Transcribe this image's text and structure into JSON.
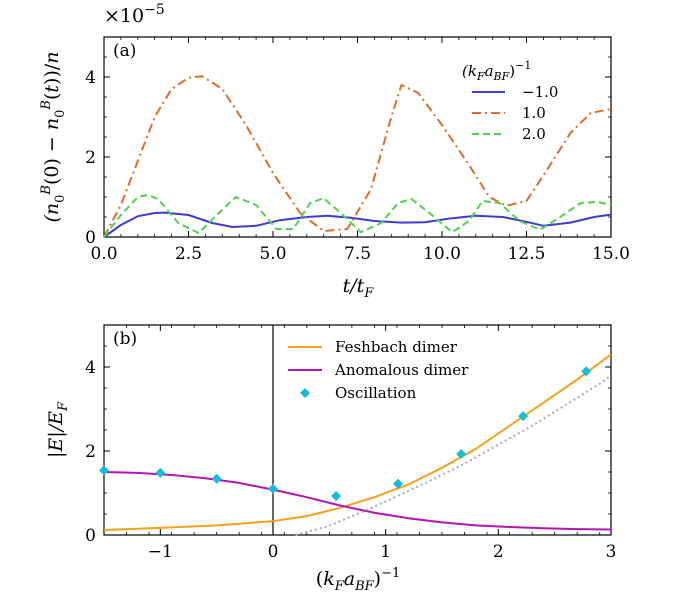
{
  "chart_data": [
    {
      "type": "line",
      "panel_label": "(a)",
      "xlabel": "t/t_F",
      "ylabel": "(n_0^B(0) − n_0^B(t))/n",
      "exponent_label": "×10",
      "exponent_power": "−5",
      "xlim": [
        0,
        15
      ],
      "ylim": [
        0,
        5
      ],
      "xticks": [
        0.0,
        2.5,
        5.0,
        7.5,
        10.0,
        12.5,
        15.0
      ],
      "xtick_labels": [
        "0.0",
        "2.5",
        "5.0",
        "7.5",
        "10.0",
        "12.5",
        "15.0"
      ],
      "yticks": [
        0,
        2,
        4
      ],
      "ytick_labels": [
        "0",
        "2",
        "4"
      ],
      "legend_title": "(k_F a_BF)^{-1}",
      "legend_position": "right",
      "grid": false,
      "series": [
        {
          "name": "−1.0",
          "color": "#3c3cd2",
          "dash": "solid",
          "x": [
            0,
            0.5,
            1.0,
            1.5,
            1.8,
            2.5,
            3.2,
            3.8,
            4.5,
            5.2,
            6.0,
            6.6,
            7.3,
            8.0,
            8.8,
            9.5,
            10.2,
            11.0,
            11.8,
            12.5,
            13.0,
            13.8,
            14.5,
            15.0
          ],
          "y": [
            0,
            0.3,
            0.52,
            0.6,
            0.61,
            0.55,
            0.35,
            0.25,
            0.28,
            0.42,
            0.5,
            0.53,
            0.48,
            0.4,
            0.36,
            0.37,
            0.46,
            0.53,
            0.5,
            0.38,
            0.28,
            0.36,
            0.5,
            0.56
          ]
        },
        {
          "name": "1.0",
          "color": "#e06a2b",
          "dash": "dashdot",
          "x": [
            0,
            0.5,
            1.0,
            1.5,
            2.0,
            2.5,
            2.9,
            3.5,
            4.2,
            5.0,
            5.8,
            6.5,
            7.2,
            7.9,
            8.5,
            8.8,
            9.3,
            10.0,
            10.8,
            11.4,
            11.9,
            12.5,
            13.2,
            13.8,
            14.4,
            15.0
          ],
          "y": [
            0,
            0.8,
            1.9,
            3.0,
            3.7,
            3.98,
            4.02,
            3.7,
            2.8,
            1.6,
            0.6,
            0.15,
            0.2,
            1.2,
            3.0,
            3.8,
            3.6,
            2.8,
            1.8,
            1.0,
            0.78,
            0.9,
            1.8,
            2.6,
            3.1,
            3.2
          ]
        },
        {
          "name": "2.0",
          "color": "#50d250",
          "dash": "dashed",
          "x": [
            0,
            0.5,
            1.0,
            1.3,
            1.6,
            2.2,
            2.8,
            3.4,
            3.9,
            4.5,
            5.1,
            5.6,
            6.1,
            6.5,
            7.0,
            7.6,
            8.2,
            8.7,
            9.1,
            9.7,
            10.3,
            10.8,
            11.2,
            11.7,
            12.3,
            12.9,
            13.5,
            14.1,
            14.6,
            15.0
          ],
          "y": [
            0,
            0.55,
            1.0,
            1.05,
            0.95,
            0.35,
            0.1,
            0.6,
            1.0,
            0.8,
            0.2,
            0.2,
            0.85,
            0.97,
            0.6,
            0.12,
            0.35,
            0.85,
            0.95,
            0.55,
            0.12,
            0.4,
            0.9,
            0.85,
            0.4,
            0.18,
            0.5,
            0.85,
            0.88,
            0.8
          ]
        }
      ]
    },
    {
      "type": "line",
      "panel_label": "(b)",
      "xlabel": "(k_F a_BF)^{-1}",
      "ylabel": "|E|/E_F",
      "xlim": [
        -1.5,
        3
      ],
      "ylim": [
        0,
        5
      ],
      "xticks": [
        -1,
        0,
        1,
        2,
        3
      ],
      "xtick_labels": [
        "−1",
        "0",
        "1",
        "2",
        "3"
      ],
      "yticks": [
        0,
        2,
        4
      ],
      "ytick_labels": [
        "0",
        "2",
        "4"
      ],
      "legend_position": "top-right",
      "grid": false,
      "vertical_line_x": 0,
      "series": [
        {
          "name": "Feshbach dimer",
          "color": "#f2a01e",
          "dash": "solid",
          "x": [
            -1.5,
            -1.0,
            -0.5,
            0.0,
            0.3,
            0.6,
            0.9,
            1.2,
            1.5,
            1.8,
            2.1,
            2.4,
            2.7,
            3.0
          ],
          "y": [
            0.12,
            0.17,
            0.23,
            0.33,
            0.45,
            0.65,
            0.9,
            1.2,
            1.6,
            2.05,
            2.6,
            3.15,
            3.7,
            4.3
          ]
        },
        {
          "name": "Anomalous dimer",
          "color": "#b414b4",
          "dash": "solid",
          "x": [
            -1.5,
            -1.2,
            -0.9,
            -0.6,
            -0.3,
            0.0,
            0.3,
            0.6,
            0.9,
            1.2,
            1.5,
            1.8,
            2.1,
            2.4,
            2.7,
            3.0
          ],
          "y": [
            1.5,
            1.48,
            1.43,
            1.35,
            1.24,
            1.08,
            0.9,
            0.7,
            0.53,
            0.4,
            0.3,
            0.23,
            0.19,
            0.16,
            0.14,
            0.13
          ]
        },
        {
          "name": "",
          "color": "#aaaaaa",
          "dash": "dotted",
          "x": [
            0.2,
            0.5,
            0.8,
            1.1,
            1.4,
            1.7,
            2.0,
            2.3,
            2.6,
            2.9,
            3.0
          ],
          "y": [
            0.0,
            0.22,
            0.56,
            0.92,
            1.3,
            1.7,
            2.15,
            2.6,
            3.1,
            3.6,
            3.8
          ]
        },
        {
          "name": "Oscillation",
          "color": "#17bdd8",
          "marker": "diamond",
          "x": [
            -1.5,
            -1.0,
            -0.5,
            0.0,
            0.56,
            1.11,
            1.67,
            2.22,
            2.78
          ],
          "y": [
            1.54,
            1.48,
            1.34,
            1.1,
            0.93,
            1.22,
            1.93,
            2.83,
            3.9
          ]
        }
      ]
    }
  ]
}
